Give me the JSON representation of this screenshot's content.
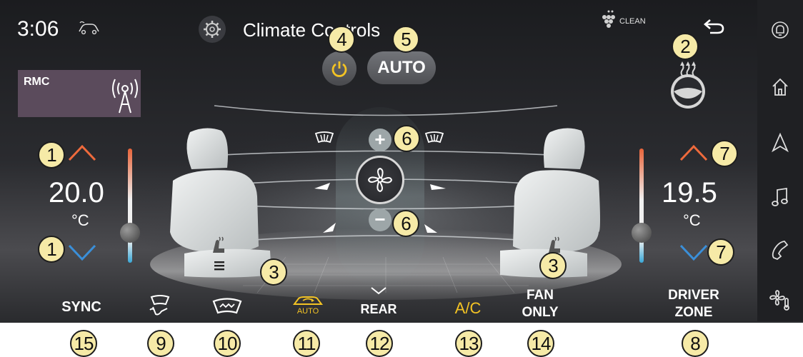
{
  "status": {
    "time": "3:06",
    "clean_label": "CLEAN"
  },
  "header": {
    "title": "Climate Controls"
  },
  "rmc": {
    "label": "RMC"
  },
  "controls": {
    "auto_label": "AUTO"
  },
  "left_zone": {
    "temperature": "20.0",
    "unit": "°C"
  },
  "right_zone": {
    "temperature": "19.5",
    "unit": "°C"
  },
  "bottom_buttons": {
    "sync": "SYNC",
    "rear": "REAR",
    "ac": "A/C",
    "fan_only_line1": "FAN",
    "fan_only_line2": "ONLY",
    "driver_zone_line1": "DRIVER",
    "driver_zone_line2": "ZONE",
    "auto_recirc_sub": "AUTO"
  },
  "callouts": {
    "c1a": "1",
    "c1b": "1",
    "c2": "2",
    "c3a": "3",
    "c3b": "3",
    "c4": "4",
    "c5": "5",
    "c6a": "6",
    "c6b": "6",
    "c7a": "7",
    "c7b": "7",
    "c8": "8",
    "c9": "9",
    "c10": "10",
    "c11": "11",
    "c12": "12",
    "c13": "13",
    "c14": "14",
    "c15": "15"
  },
  "sidebar": {
    "icons": [
      "notification-icon",
      "home-icon",
      "navigation-icon",
      "music-icon",
      "phone-icon",
      "climate-icon"
    ]
  },
  "colors": {
    "accent_yellow": "#f3c324",
    "arrow_orange": "#ee6a3c",
    "arrow_blue": "#3a8fd9",
    "rmc_bg": "#5b4b5c",
    "callout_bg": "#f6eaa7"
  }
}
